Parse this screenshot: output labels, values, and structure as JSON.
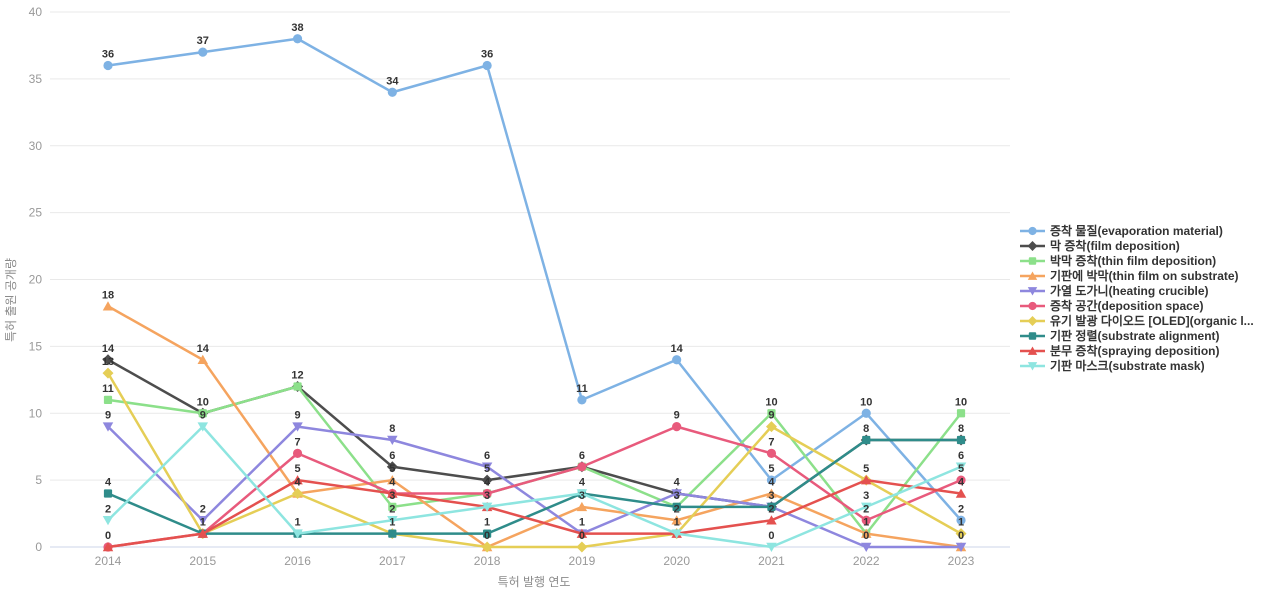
{
  "chart_data": {
    "type": "line",
    "title": "",
    "xlabel": "특허 발행 연도",
    "ylabel": "특허 출원 공개량",
    "x": [
      "2014",
      "2015",
      "2016",
      "2017",
      "2018",
      "2019",
      "2020",
      "2021",
      "2022",
      "2023"
    ],
    "ylim": [
      0,
      40
    ],
    "yticks": [
      0,
      5,
      10,
      15,
      20,
      25,
      30,
      35,
      40
    ],
    "grid": true,
    "legend_position": "right",
    "series": [
      {
        "name": "증착 물질(evaporation material)",
        "color": "#7EB2E4",
        "symbol": "circle",
        "values": [
          36,
          37,
          38,
          34,
          36,
          11,
          14,
          5,
          10,
          2
        ]
      },
      {
        "name": "막 증착(film deposition)",
        "color": "#4D4D4D",
        "symbol": "diamond",
        "values": [
          14,
          10,
          12,
          6,
          5,
          6,
          4,
          3,
          8,
          8
        ]
      },
      {
        "name": "박막 증착(thin film deposition)",
        "color": "#8CE08A",
        "symbol": "square",
        "values": [
          11,
          10,
          12,
          3,
          4,
          6,
          3,
          10,
          1,
          10
        ]
      },
      {
        "name": "기판에 박막(thin film on substrate)",
        "color": "#F5A45F",
        "symbol": "triangle-up",
        "values": [
          18,
          14,
          4,
          5,
          0,
          3,
          2,
          4,
          1,
          0
        ]
      },
      {
        "name": "가열 도가니(heating crucible)",
        "color": "#8E87DE",
        "symbol": "triangle-down",
        "values": [
          9,
          2,
          9,
          8,
          6,
          1,
          4,
          3,
          0,
          0
        ]
      },
      {
        "name": "증착 공간(deposition space)",
        "color": "#E85A7C",
        "symbol": "circle",
        "values": [
          0,
          1,
          7,
          4,
          4,
          6,
          9,
          7,
          2,
          5
        ]
      },
      {
        "name": "유기 발광 다이오드 [OLED](organic l...",
        "color": "#E5CE56",
        "symbol": "diamond",
        "values": [
          13,
          1,
          4,
          1,
          0,
          0,
          1,
          9,
          5,
          1
        ]
      },
      {
        "name": "기판 정렬(substrate alignment)",
        "color": "#2F8C8A",
        "symbol": "square",
        "values": [
          4,
          1,
          1,
          1,
          1,
          4,
          3,
          3,
          8,
          8
        ]
      },
      {
        "name": "분무 증착(spraying deposition)",
        "color": "#E4514F",
        "symbol": "triangle-up",
        "values": [
          0,
          1,
          5,
          4,
          3,
          1,
          1,
          2,
          5,
          4
        ]
      },
      {
        "name": "기판 마스크(substrate mask)",
        "color": "#8EE5E0",
        "symbol": "triangle-down",
        "values": [
          2,
          9,
          1,
          2,
          3,
          4,
          1,
          0,
          3,
          6
        ]
      }
    ],
    "colors": {
      "grid_line": "#e9e9e9",
      "axis_line": "#ccd4ea",
      "tick_text": "#999999",
      "point_label_text": "#333333"
    }
  }
}
